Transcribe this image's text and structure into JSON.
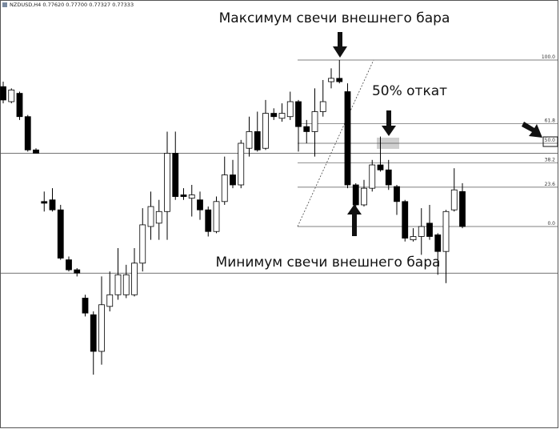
{
  "chart_data": {
    "type": "candlestick",
    "header": "NZDUSD,H4  0.77620 0.77700 0.77327 0.77333",
    "annotations": [
      "Максимум свечи внешнего бара",
      "50% откат",
      "Минимум свечи внешнего бара"
    ],
    "ylim": [
      -118.75,
      131.25
    ],
    "yticks": [
      {
        "value": 100,
        "label": "100.0"
      },
      61.8,
      {
        "value": 50,
        "label": "50.0"
      },
      38.2,
      23.6,
      {
        "value": 0,
        "label": "0.0"
      }
    ],
    "hlines": [
      44,
      -28
    ],
    "up_color": "#ffffff",
    "down_color": "#000000",
    "open": [
      84,
      75,
      80,
      66,
      46,
      15,
      16,
      10,
      -20,
      -26,
      -43,
      -53,
      -75,
      -48,
      -41,
      -41,
      -41,
      -22,
      0,
      2,
      9,
      44,
      19,
      17,
      16,
      10,
      -3,
      15,
      31,
      25,
      47,
      57,
      47,
      68,
      65,
      66,
      75,
      60,
      57,
      69,
      87,
      89,
      81,
      25,
      13,
      23,
      37,
      34,
      24,
      15,
      -8,
      -6,
      2,
      -5,
      -15,
      10,
      21
    ],
    "high": [
      87,
      83,
      81,
      67,
      47,
      21,
      23,
      13,
      -18,
      -25,
      -41,
      -51,
      -30,
      -27,
      -13,
      -23,
      -13,
      11,
      21,
      16,
      57,
      57,
      23,
      25,
      21,
      12,
      18,
      42,
      40,
      52,
      66,
      69,
      76,
      71,
      74,
      81,
      76,
      64,
      83,
      88,
      95,
      100,
      86,
      26,
      28,
      40,
      54,
      40,
      25,
      16,
      -1,
      11,
      13,
      -4,
      10,
      35,
      26
    ],
    "low": [
      74,
      74,
      64,
      45,
      44,
      9,
      9,
      -20,
      -27,
      -30,
      -54,
      -89,
      -83,
      -51,
      -44,
      -43,
      -42,
      -27,
      -8,
      -8,
      -8,
      16,
      16,
      6,
      4,
      -6,
      -4,
      13,
      23,
      23,
      42,
      45,
      46,
      64,
      63,
      64,
      45,
      50,
      42,
      66,
      83,
      86,
      23,
      0,
      12,
      21,
      33,
      22,
      7,
      -9,
      -9,
      -17,
      -8,
      -29,
      -34,
      9,
      -1
    ],
    "close": [
      76,
      82,
      66,
      46,
      44,
      14,
      10,
      -19,
      -26,
      -28,
      -52,
      -75,
      -47,
      -41,
      -29,
      -29,
      -22,
      1,
      12,
      9,
      44,
      18,
      18,
      19,
      10,
      -3,
      15,
      31,
      25,
      50,
      57,
      46,
      68,
      66,
      68,
      75,
      60,
      57,
      69,
      75,
      89,
      87,
      25,
      13,
      23,
      37,
      34,
      25,
      15,
      -7,
      -6,
      0,
      -6,
      -15,
      9,
      22,
      0
    ]
  }
}
